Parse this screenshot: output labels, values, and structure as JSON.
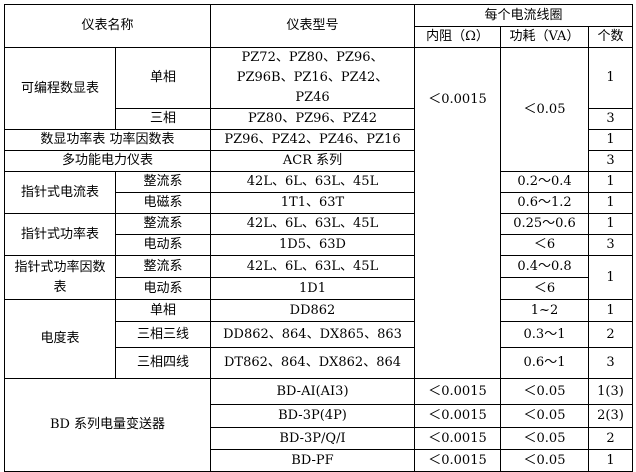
{
  "header": {
    "name": "仪表名称",
    "model": "仪表型号",
    "coil": "每个电流线圈",
    "resistance": "内阻（Ω）",
    "power": "功耗（VA）",
    "count": "个数"
  },
  "rows": [
    {
      "group": "可编程数显表",
      "sub": "单相",
      "model": "PZ72、PZ80、PZ96、PZ96B、PZ16、PZ42、PZ46",
      "resistance": "＜0.0015",
      "power": "＜0.05",
      "count": "1"
    },
    {
      "sub": "三相",
      "model": "PZ80、PZ96、PZ42",
      "count": "3"
    },
    {
      "group": "数显功率表 功率因数表",
      "model": "PZ96、PZ42、PZ46、PZ16",
      "count": "1"
    },
    {
      "group": "多功能电力仪表",
      "model": "ACR 系列",
      "count": "3"
    },
    {
      "group": "指针式电流表",
      "sub": "整流系",
      "model": "42L、6L、63L、45L",
      "power": "0.2～0.4",
      "count": "1"
    },
    {
      "sub": "电磁系",
      "model": "1T1、63T",
      "power": "0.6～1.2",
      "count": "1"
    },
    {
      "group": "指针式功率表",
      "sub": "整流系",
      "model": "42L、6L、63L、45L",
      "power": "0.25～0.6",
      "count": "1"
    },
    {
      "sub": "电动系",
      "model": "1D5、63D",
      "power": "＜6",
      "count": "3"
    },
    {
      "group": "指针式功率因数表",
      "sub": "整流系",
      "model": "42L、6L、63L、45L",
      "power": "0.4～0.8",
      "count": "1"
    },
    {
      "sub": "电动系",
      "model": "1D1",
      "power": "＜6"
    },
    {
      "group": "电度表",
      "sub": "单相",
      "model": "DD862",
      "power": "1~2",
      "count": "1"
    },
    {
      "sub": "三相三线",
      "model": "DD862、864、DX865、863",
      "power": "0.3～1",
      "count": "2"
    },
    {
      "sub": "三相四线",
      "model": "DT862、864、DX862、864",
      "power": "0.6～1",
      "count": "3"
    },
    {
      "group": "BD 系列电量变送器",
      "model": "BD-AI(AI3)",
      "resistance": "＜0.0015",
      "power": "＜0.05",
      "count": "1(3)"
    },
    {
      "model": "BD-3P(4P)",
      "resistance": "＜0.0015",
      "power": "＜0.05",
      "count": "2(3)"
    },
    {
      "model": "BD-3P/Q/I",
      "resistance": "＜0.0015",
      "power": "＜0.05",
      "count": "2"
    },
    {
      "model": "BD-PF",
      "resistance": "＜0.0015",
      "power": "＜0.05",
      "count": "1"
    }
  ]
}
